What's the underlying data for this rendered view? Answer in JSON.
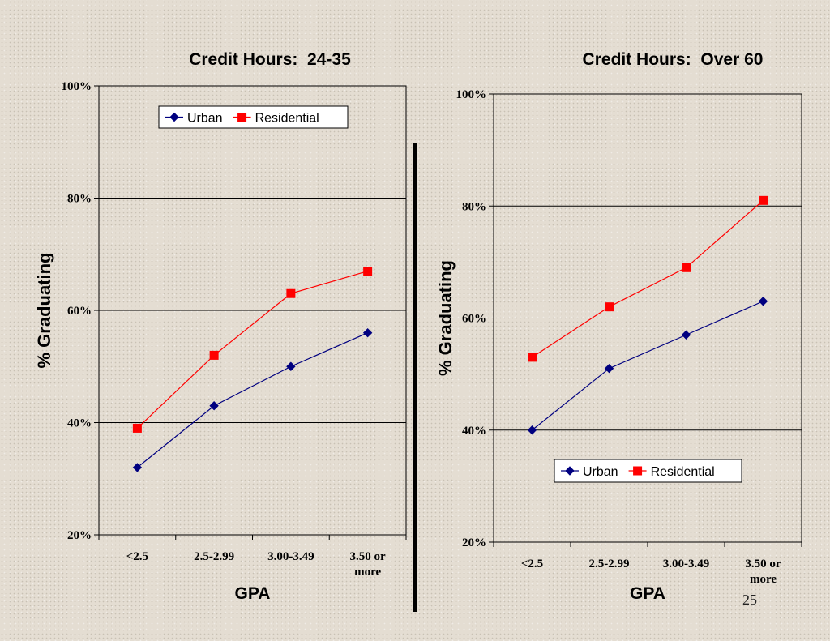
{
  "slide": {
    "page_number": "25",
    "divider_color": "#000000"
  },
  "chart_data": [
    {
      "type": "line",
      "title": "Credit Hours:  24-35",
      "xlabel": "GPA",
      "ylabel": "% Graduating",
      "categories": [
        "<2.5",
        "2.5-2.99",
        "3.00-3.49",
        "3.50 or more"
      ],
      "category_lines": [
        [
          "<2.5"
        ],
        [
          "2.5-2.99"
        ],
        [
          "3.00-3.49"
        ],
        [
          "3.50 or",
          "more"
        ]
      ],
      "yticks": [
        "20%",
        "40%",
        "60%",
        "80%",
        "100%"
      ],
      "ytick_values": [
        20,
        40,
        60,
        80,
        100
      ],
      "ylim": [
        20,
        100
      ],
      "grid": true,
      "legend_position": "top",
      "series": [
        {
          "name": "Urban",
          "values": [
            32,
            43,
            50,
            56
          ],
          "color": "#000080",
          "marker": "diamond"
        },
        {
          "name": "Residential",
          "values": [
            39,
            52,
            63,
            67
          ],
          "color": "#ff0000",
          "marker": "square"
        }
      ]
    },
    {
      "type": "line",
      "title": "Credit Hours:  Over 60",
      "xlabel": "GPA",
      "ylabel": "% Graduating",
      "categories": [
        "<2.5",
        "2.5-2.99",
        "3.00-3.49",
        "3.50 or more"
      ],
      "category_lines": [
        [
          "<2.5"
        ],
        [
          "2.5-2.99"
        ],
        [
          "3.00-3.49"
        ],
        [
          "3.50 or",
          "more"
        ]
      ],
      "yticks": [
        "20%",
        "40%",
        "60%",
        "80%",
        "100%"
      ],
      "ytick_values": [
        20,
        40,
        60,
        80,
        100
      ],
      "ylim": [
        20,
        100
      ],
      "grid": true,
      "legend_position": "bottom",
      "series": [
        {
          "name": "Urban",
          "values": [
            40,
            51,
            57,
            63
          ],
          "color": "#000080",
          "marker": "diamond"
        },
        {
          "name": "Residential",
          "values": [
            53,
            62,
            69,
            81
          ],
          "color": "#ff0000",
          "marker": "square"
        }
      ]
    }
  ]
}
